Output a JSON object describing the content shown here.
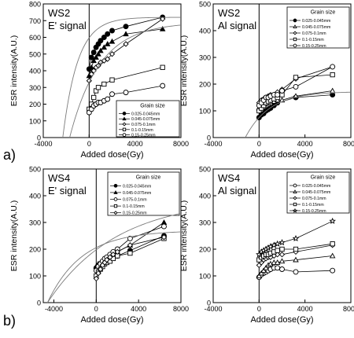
{
  "panel_labels": [
    "a)",
    "b)"
  ],
  "chart_data": [
    {
      "type": "scatter",
      "title": "WS2",
      "subtitle": "E' signal",
      "xlabel": "Added dose(Gy)",
      "ylabel": "ESR intensity(A.U.)",
      "xlim": [
        -4000,
        8000
      ],
      "ylim": [
        0,
        800
      ],
      "xticks": [
        -4000,
        0,
        4000,
        8000
      ],
      "yticks": [
        0,
        100,
        200,
        300,
        400,
        500,
        600,
        700,
        800
      ],
      "legend": {
        "title": "Grain size",
        "position": "bottom-right"
      },
      "series": [
        {
          "name": "0.025-0.045mm",
          "marker": "filled-circle",
          "x": [
            0,
            200,
            400,
            600,
            800,
            1000,
            1300,
            1600,
            2000,
            3200,
            6400
          ],
          "y": [
            410,
            480,
            510,
            540,
            560,
            580,
            600,
            620,
            640,
            665,
            720
          ]
        },
        {
          "name": "0.045-0.075mm",
          "marker": "filled-triangle",
          "x": [
            0,
            200,
            400,
            600,
            800,
            1000,
            1300,
            1600,
            2000,
            3200,
            6400
          ],
          "y": [
            370,
            420,
            460,
            480,
            500,
            520,
            540,
            560,
            575,
            620,
            650
          ]
        },
        {
          "name": "0.075-0.1mm",
          "marker": "open-diamond",
          "x": [
            0,
            200,
            400,
            600,
            800,
            1000,
            1300,
            1600,
            2000,
            3200,
            6400
          ],
          "y": [
            340,
            380,
            400,
            420,
            430,
            450,
            460,
            470,
            500,
            560,
            710
          ]
        },
        {
          "name": "0.1-0.15mm",
          "marker": "open-square",
          "x": [
            0,
            200,
            400,
            600,
            800,
            1300,
            2000,
            6400
          ],
          "y": [
            170,
            200,
            240,
            280,
            300,
            320,
            345,
            420
          ]
        },
        {
          "name": "0.15-0.25mm",
          "marker": "open-circle",
          "x": [
            0,
            200,
            400,
            600,
            800,
            1000,
            1300,
            1600,
            2000,
            3200,
            6400
          ],
          "y": [
            150,
            170,
            190,
            200,
            210,
            210,
            220,
            230,
            260,
            270,
            310
          ]
        }
      ]
    },
    {
      "type": "scatter",
      "title": "WS2",
      "subtitle": "Al signal",
      "xlabel": "Added dose(Gy)",
      "ylabel": "ESR intensity(A.U.)",
      "xlim": [
        -4000,
        8000
      ],
      "ylim": [
        0,
        500
      ],
      "xticks": [
        -4000,
        0,
        4000,
        8000
      ],
      "yticks": [
        0,
        100,
        200,
        300,
        400,
        500
      ],
      "legend": {
        "title": "Grain size",
        "position": "top-right"
      },
      "series": [
        {
          "name": "0.025-0.045mm",
          "marker": "filled-circle",
          "x": [
            0,
            200,
            400,
            600,
            800,
            1000,
            1300,
            1600,
            3200,
            6400
          ],
          "y": [
            75,
            85,
            90,
            100,
            105,
            110,
            120,
            130,
            150,
            160
          ]
        },
        {
          "name": "0.045-0.075mm",
          "marker": "open-triangle",
          "x": [
            0,
            200,
            400,
            600,
            800,
            1000,
            1300,
            1600,
            2000,
            3200,
            6400
          ],
          "y": [
            110,
            115,
            120,
            125,
            125,
            130,
            135,
            140,
            140,
            155,
            175
          ]
        },
        {
          "name": "0.075-0.1mm",
          "marker": "open-diamond",
          "x": [
            0,
            200,
            400,
            600,
            800,
            1000,
            1300,
            1600,
            2000,
            3200,
            6400
          ],
          "y": [
            130,
            140,
            145,
            150,
            155,
            160,
            160,
            170,
            180,
            220,
            265
          ]
        },
        {
          "name": "0.1-0.15mm",
          "marker": "open-square",
          "x": [
            0,
            200,
            400,
            600,
            800,
            1000,
            1300,
            1600,
            2000,
            3200,
            6400
          ],
          "y": [
            100,
            110,
            120,
            130,
            135,
            140,
            145,
            150,
            160,
            225,
            235
          ]
        },
        {
          "name": "0.15-0.25mm",
          "marker": "open-circle",
          "x": [
            0,
            200,
            400,
            600,
            800,
            1000,
            1300,
            1600,
            2000,
            3200,
            6400
          ],
          "y": [
            120,
            130,
            140,
            150,
            150,
            155,
            160,
            160,
            175,
            190,
            265
          ]
        }
      ]
    },
    {
      "type": "scatter",
      "title": "WS4",
      "subtitle": "E' signal",
      "xlabel": "Added dose(Gy)",
      "ylabel": "ESR intensity(A.U.)",
      "xlim": [
        -5000,
        8000
      ],
      "ylim": [
        0,
        500
      ],
      "xticks": [
        -4000,
        0,
        4000,
        8000
      ],
      "yticks": [
        0,
        100,
        200,
        300,
        400,
        500
      ],
      "legend": {
        "title": "Grain size",
        "position": "top-right"
      },
      "series": [
        {
          "name": "0.025-0.045mm",
          "marker": "filled-circle",
          "x": [
            0,
            200,
            400,
            600,
            800,
            1000,
            1300,
            1600,
            2000,
            3200,
            6400
          ],
          "y": [
            130,
            140,
            145,
            150,
            155,
            160,
            165,
            170,
            175,
            195,
            250
          ]
        },
        {
          "name": "0.045-0.075mm",
          "marker": "filled-triangle",
          "x": [
            0,
            200,
            400,
            600,
            800,
            1000,
            1300,
            1600,
            2000,
            3200,
            6400
          ],
          "y": [
            135,
            145,
            150,
            155,
            160,
            165,
            170,
            175,
            190,
            215,
            300
          ]
        },
        {
          "name": "0.075-0.1mm",
          "marker": "open-circle",
          "x": [
            0,
            200,
            400,
            600,
            800,
            1000,
            1300,
            1600,
            2000,
            3200,
            6400
          ],
          "y": [
            120,
            135,
            145,
            155,
            165,
            170,
            180,
            190,
            200,
            240,
            285
          ]
        },
        {
          "name": "0.1-0.15mm",
          "marker": "open-square",
          "x": [
            0,
            200,
            400,
            600,
            800,
            1000,
            1300,
            1600,
            2000,
            3200,
            6400
          ],
          "y": [
            100,
            115,
            125,
            135,
            145,
            150,
            155,
            165,
            175,
            185,
            240
          ]
        },
        {
          "name": "0.15-0.25mm",
          "marker": "open-diamond",
          "x": [
            0,
            200,
            400,
            600,
            800,
            1000,
            1300,
            1600,
            2000,
            3200,
            6400
          ],
          "y": [
            90,
            110,
            125,
            140,
            150,
            160,
            170,
            180,
            190,
            215,
            245
          ]
        }
      ]
    },
    {
      "type": "scatter",
      "title": "WS4",
      "subtitle": "Al signal",
      "xlabel": "Added dose(Gy)",
      "ylabel": "ESR intensity(A.U.)",
      "xlim": [
        -4000,
        8000
      ],
      "ylim": [
        0,
        500
      ],
      "xticks": [
        -4000,
        0,
        4000,
        8000
      ],
      "yticks": [
        0,
        100,
        200,
        300,
        400,
        500
      ],
      "legend": {
        "title": "Grain size",
        "position": "top-right"
      },
      "series": [
        {
          "name": "0.025-0.045mm",
          "marker": "open-circle",
          "x": [
            0,
            200,
            400,
            600,
            800,
            1000,
            1300,
            1600,
            2000,
            3200,
            6400
          ],
          "y": [
            95,
            105,
            110,
            115,
            120,
            125,
            130,
            130,
            125,
            115,
            120
          ]
        },
        {
          "name": "0.045-0.075mm",
          "marker": "open-triangle",
          "x": [
            0,
            200,
            400,
            600,
            800,
            1000,
            1300,
            1600,
            2000,
            3200,
            6400
          ],
          "y": [
            100,
            110,
            120,
            130,
            140,
            145,
            150,
            150,
            155,
            160,
            175
          ]
        },
        {
          "name": "0.075-0.1mm",
          "marker": "open-diamond",
          "x": [
            0,
            200,
            400,
            600,
            800,
            1000,
            1300,
            1600,
            2000,
            3200,
            6400
          ],
          "y": [
            140,
            150,
            160,
            165,
            170,
            170,
            175,
            180,
            180,
            190,
            215
          ]
        },
        {
          "name": "0.1-0.15mm",
          "marker": "open-square",
          "x": [
            0,
            200,
            400,
            600,
            800,
            1000,
            1300,
            1600,
            2000,
            3200,
            6400
          ],
          "y": [
            160,
            170,
            175,
            180,
            180,
            185,
            190,
            195,
            200,
            200,
            220
          ]
        },
        {
          "name": "0.15-0.25mm",
          "marker": "open-star",
          "x": [
            0,
            200,
            400,
            600,
            800,
            1000,
            1300,
            1600,
            2000,
            3200,
            6400
          ],
          "y": [
            180,
            190,
            195,
            200,
            205,
            210,
            215,
            220,
            225,
            240,
            305
          ]
        }
      ]
    }
  ]
}
